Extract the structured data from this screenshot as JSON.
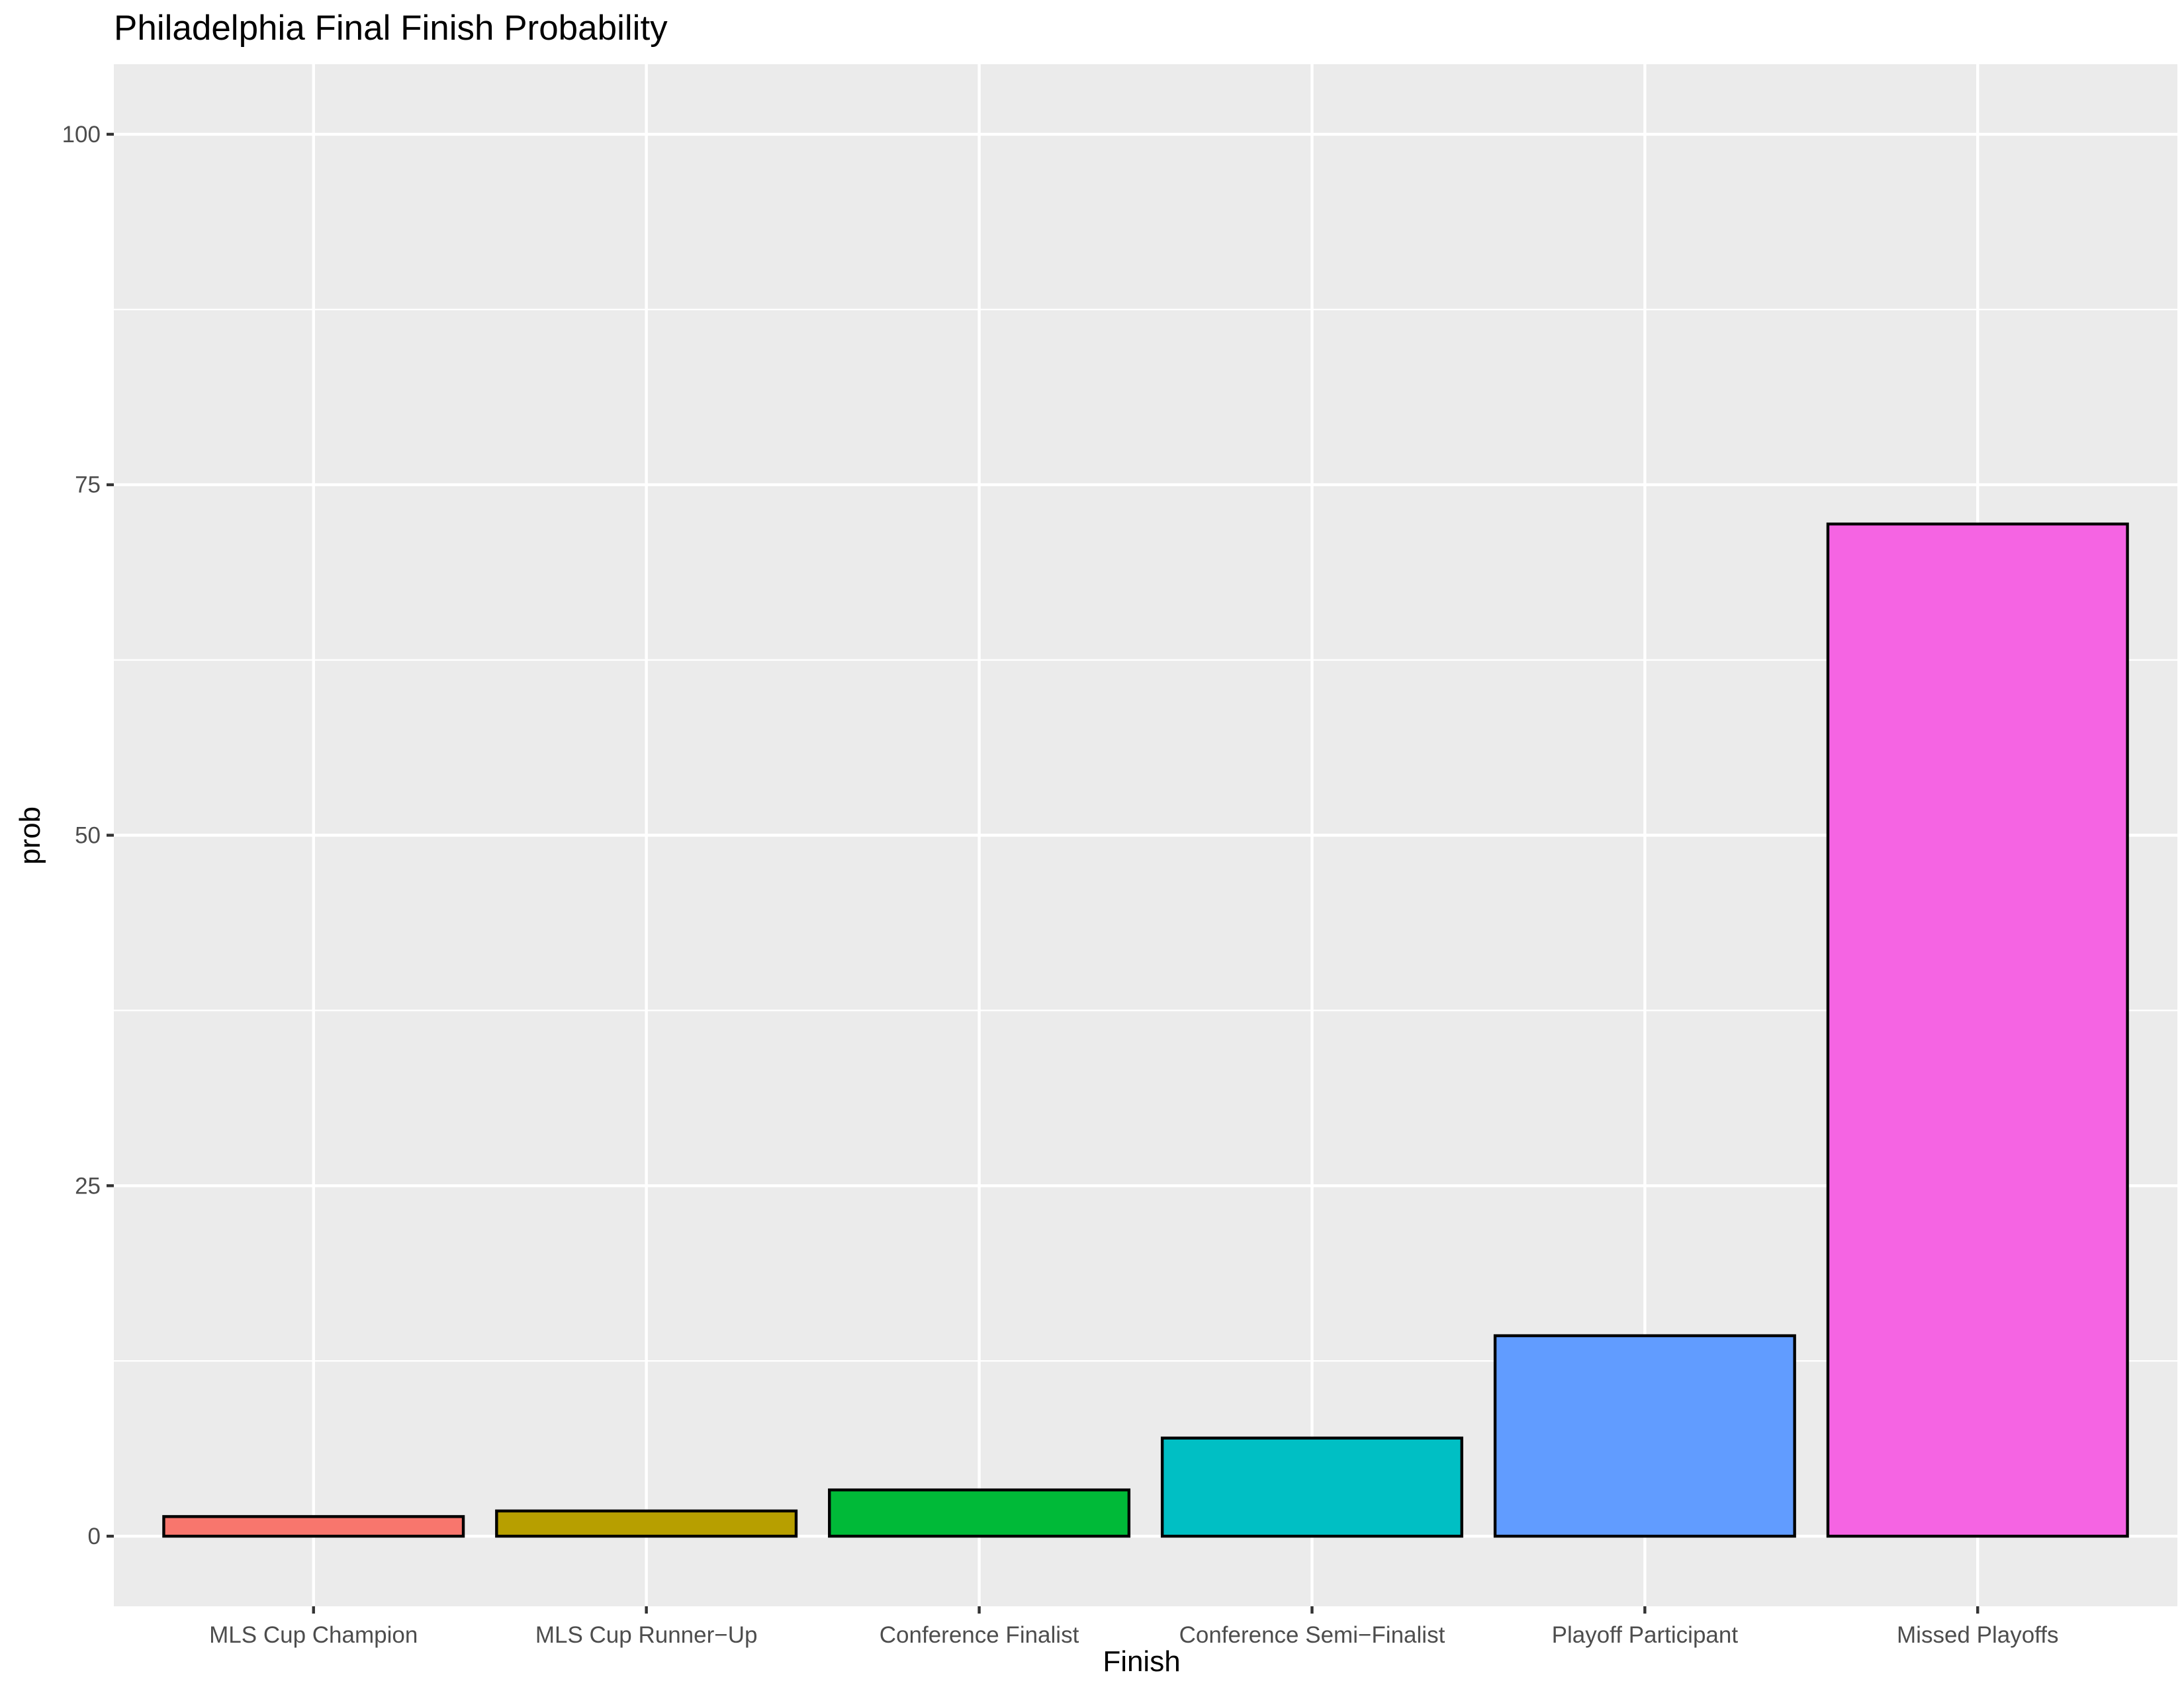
{
  "chart_data": {
    "type": "bar",
    "title": "Philadelphia Final Finish Probability",
    "xlabel": "Finish",
    "ylabel": "prob",
    "categories": [
      "MLS Cup Champion",
      "MLS Cup Runner−Up",
      "Conference Finalist",
      "Conference Semi−Finalist",
      "Playoff Participant",
      "Missed Playoffs"
    ],
    "values": [
      1.4,
      1.8,
      3.3,
      7.0,
      14.3,
      72.2
    ],
    "colors": [
      "#F8766D",
      "#B79F00",
      "#00BA38",
      "#00BFC4",
      "#619CFF",
      "#F564E3"
    ],
    "bar_outline": "#000000",
    "ylim": [
      -5,
      105
    ],
    "yticks": [
      0,
      25,
      50,
      75,
      100
    ],
    "grid": true,
    "legend": "none"
  }
}
